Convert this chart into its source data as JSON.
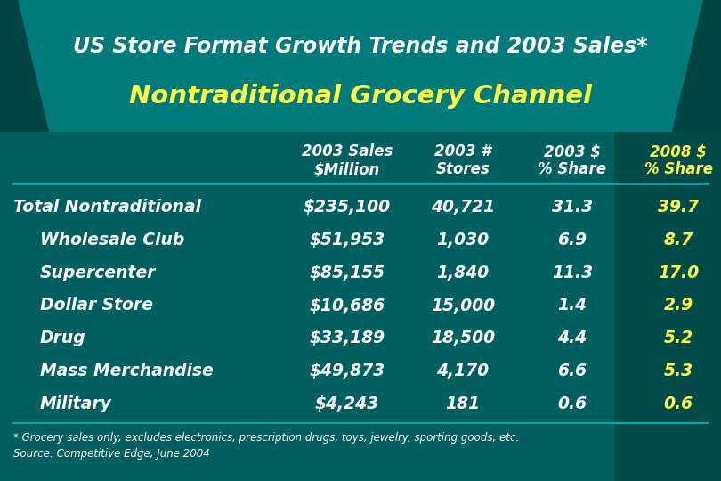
{
  "title_line1": "US Store Format Growth Trends and 2003 Sales*",
  "title_line2": "Nontraditional Grocery Channel",
  "rows": [
    {
      "label": "Total Nontraditional",
      "sales": "$235,100",
      "stores": "40,721",
      "share2003": "31.3",
      "share2008": "39.7",
      "indent": false
    },
    {
      "label": "Wholesale Club",
      "sales": "$51,953",
      "stores": "1,030",
      "share2003": "6.9",
      "share2008": "8.7",
      "indent": true
    },
    {
      "label": "Supercenter",
      "sales": "$85,155",
      "stores": "1,840",
      "share2003": "11.3",
      "share2008": "17.0",
      "indent": true
    },
    {
      "label": "Dollar Store",
      "sales": "$10,686",
      "stores": "15,000",
      "share2003": "1.4",
      "share2008": "2.9",
      "indent": true
    },
    {
      "label": "Drug",
      "sales": "$33,189",
      "stores": "18,500",
      "share2003": "4.4",
      "share2008": "5.2",
      "indent": true
    },
    {
      "label": "Mass Merchandise",
      "sales": "$49,873",
      "stores": "4,170",
      "share2003": "6.6",
      "share2008": "5.3",
      "indent": true
    },
    {
      "label": "Military",
      "sales": "$4,243",
      "stores": "181",
      "share2003": "0.6",
      "share2008": "0.6",
      "indent": true
    }
  ],
  "footnote1": "* Grocery sales only, excludes electronics, prescription drugs, toys, jewelry, sporting goods, etc.",
  "footnote2": "Source: Competitive Edge, June 2004",
  "bg_color": "#005f5f",
  "title_bg_color": "#007a7a",
  "title_dark_color": "#004444",
  "right_panel_color": "#004a4a",
  "white_text": "#FFFFFF",
  "yellow_text": "#FFFF44",
  "line_color": "#00AAAA",
  "fig_bg_color": "#2d6b6b"
}
